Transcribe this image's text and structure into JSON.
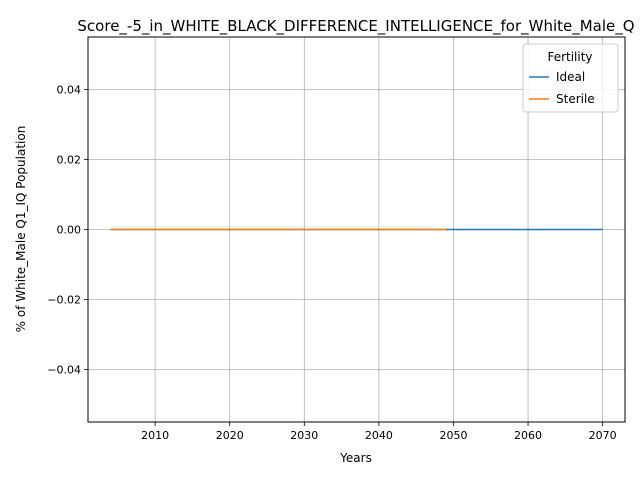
{
  "chart_data": {
    "type": "line",
    "title": "Score_-5_in_WHITE_BLACK_DIFFERENCE_INTELLIGENCE_for_White_Male_Q",
    "xlabel": "Years",
    "ylabel": "% of White_Male Q1_IQ Population",
    "xlim": [
      2001,
      2073
    ],
    "ylim": [
      -0.055,
      0.055
    ],
    "xticks": [
      2010,
      2020,
      2030,
      2040,
      2050,
      2060,
      2070
    ],
    "xtick_labels": [
      "2010",
      "2020",
      "2030",
      "2040",
      "2050",
      "2060",
      "2070"
    ],
    "yticks": [
      -0.04,
      -0.02,
      0.0,
      0.02,
      0.04
    ],
    "ytick_labels": [
      "−0.04",
      "−0.02",
      "0.00",
      "0.02",
      "0.04"
    ],
    "grid": true,
    "legend": {
      "title": "Fertility",
      "placement": "top-right"
    },
    "series": [
      {
        "name": "Ideal",
        "color": "#1f77b4",
        "x": [
          2004,
          2070
        ],
        "y": [
          0.0,
          0.0
        ]
      },
      {
        "name": "Sterile",
        "color": "#ff7f0e",
        "x": [
          2004,
          2049
        ],
        "y": [
          0.0,
          0.0
        ]
      }
    ]
  }
}
